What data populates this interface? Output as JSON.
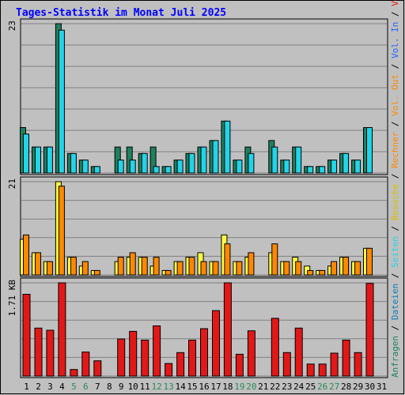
{
  "title": "Tages-Statistik im Monat Juli 2025",
  "colors": {
    "background": "#c0c0c0",
    "title": "#0000ff",
    "anfragen": "#1f8060",
    "dateien": "#22d4e8",
    "seiten": "#22d4e8",
    "besuche": "#ffff44",
    "rechner": "#ff8800",
    "vol_out": "#ff8800",
    "vol_in": "#2060ff",
    "volumen": "#e21818",
    "weekend": "#2a8a55",
    "weekday": "#000000"
  },
  "right_legend": [
    {
      "text": "Anfragen",
      "color": "#1f8060"
    },
    {
      "text": " / ",
      "color": "#000000"
    },
    {
      "text": "Dateien",
      "color": "#0a7ab8"
    },
    {
      "text": " / ",
      "color": "#000000"
    },
    {
      "text": "Seiten",
      "color": "#22d4e8"
    },
    {
      "text": " / ",
      "color": "#000000"
    },
    {
      "text": "Besuche",
      "color": "#d4c000"
    },
    {
      "text": " / ",
      "color": "#000000"
    },
    {
      "text": "Rechner",
      "color": "#ff8800"
    },
    {
      "text": " / ",
      "color": "#000000"
    },
    {
      "text": "Vol. Out",
      "color": "#ff8800"
    },
    {
      "text": " / ",
      "color": "#000000"
    },
    {
      "text": "Vol. In",
      "color": "#2060ff"
    },
    {
      "text": " / ",
      "color": "#000000"
    },
    {
      "text": "Volumen",
      "color": "#e21818"
    }
  ],
  "chart_data": {
    "type": "bar",
    "days": [
      "1",
      "2",
      "3",
      "4",
      "5",
      "6",
      "7",
      "8",
      "9",
      "10",
      "11",
      "12",
      "13",
      "14",
      "15",
      "16",
      "17",
      "18",
      "19",
      "20",
      "21",
      "22",
      "23",
      "24",
      "25",
      "26",
      "27",
      "28",
      "29",
      "30",
      "31"
    ],
    "weekend_days": [
      "5",
      "6",
      "12",
      "13",
      "19",
      "20",
      "26",
      "27"
    ],
    "panels": [
      {
        "max_label": "23",
        "max": 23,
        "series": [
          {
            "name": "Anfragen",
            "values": [
              7,
              4,
              4,
              23,
              3,
              2,
              1,
              0,
              4,
              4,
              3,
              4,
              1,
              2,
              3,
              4,
              5,
              8,
              2,
              4,
              0,
              5,
              2,
              4,
              1,
              1,
              2,
              3,
              2,
              7,
              0
            ]
          },
          {
            "name": "Dateien",
            "values": [
              6,
              4,
              4,
              22,
              3,
              2,
              1,
              0,
              2,
              2,
              3,
              1,
              1,
              2,
              3,
              4,
              5,
              8,
              2,
              3,
              0,
              4,
              2,
              4,
              1,
              1,
              2,
              3,
              2,
              7,
              0
            ]
          }
        ]
      },
      {
        "max_label": "21",
        "max": 21,
        "series": [
          {
            "name": "Besuche",
            "values": [
              8,
              5,
              3,
              21,
              4,
              2,
              1,
              0,
              3,
              4,
              4,
              2,
              1,
              3,
              4,
              5,
              3,
              9,
              3,
              4,
              0,
              5,
              3,
              4,
              2,
              1,
              2,
              4,
              3,
              6,
              0
            ]
          },
          {
            "name": "Rechner",
            "values": [
              9,
              5,
              3,
              20,
              4,
              3,
              1,
              0,
              4,
              5,
              4,
              4,
              1,
              3,
              4,
              3,
              3,
              7,
              3,
              5,
              0,
              7,
              3,
              3,
              1,
              1,
              3,
              4,
              3,
              6,
              0
            ]
          }
        ]
      },
      {
        "max_label": "1.71 KB",
        "max": 1.71,
        "series": [
          {
            "name": "Volumen",
            "values": [
              1.5,
              0.88,
              0.84,
              1.71,
              0.12,
              0.44,
              0.28,
              0,
              0.68,
              0.82,
              0.66,
              0.92,
              0.23,
              0.43,
              0.66,
              0.87,
              1.2,
              1.71,
              0.4,
              0.83,
              0,
              1.06,
              0.43,
              0.88,
              0.22,
              0.22,
              0.42,
              0.66,
              0.43,
              1.7,
              0
            ]
          }
        ]
      }
    ]
  }
}
